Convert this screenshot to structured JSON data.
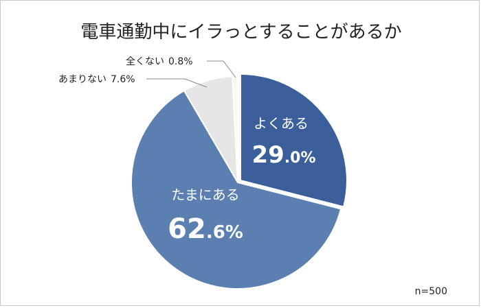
{
  "chart_data": {
    "type": "pie",
    "title": "電車通勤中にイラっとすることがあるか",
    "note": "n=500",
    "slices": [
      {
        "label": "よくある",
        "value": 29.0,
        "display_int": "29",
        "display_dec": ".0%",
        "color": "#3a5f9b"
      },
      {
        "label": "たまにある",
        "value": 62.6,
        "display_int": "62",
        "display_dec": ".6%",
        "color": "#5b7fb0"
      },
      {
        "label": "あまりない",
        "value": 7.6,
        "display": "7.6%",
        "color": "#e6e6e6"
      },
      {
        "label": "全くない",
        "value": 0.8,
        "display": "0.8%",
        "color": "#f7f7f7"
      }
    ]
  }
}
